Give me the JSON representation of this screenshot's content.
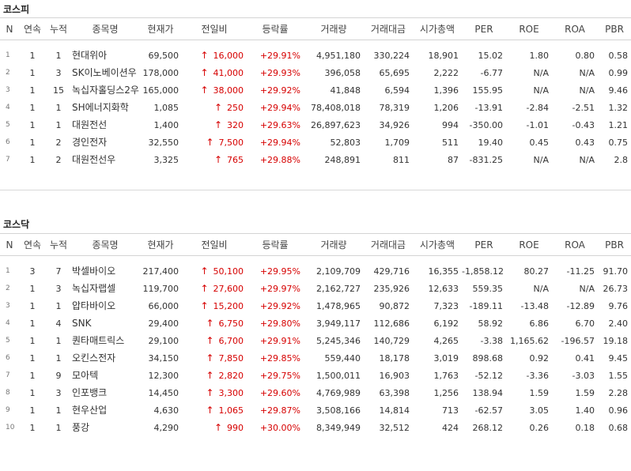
{
  "columns": [
    "N",
    "연속",
    "누적",
    "종목명",
    "현재가",
    "전일비",
    "등락률",
    "거래량",
    "거래대금",
    "시가총액",
    "PER",
    "ROE",
    "ROA",
    "PBR"
  ],
  "kospi": {
    "title": "코스피",
    "rows": [
      {
        "n": "1",
        "streak": "1",
        "total": "1",
        "name": "현대위아",
        "price": "69,500",
        "change": "16,000",
        "rate": "+29.91%",
        "volume": "4,951,180",
        "amount": "330,224",
        "cap": "18,901",
        "per": "15.02",
        "roe": "1.80",
        "roa": "0.80",
        "pbr": "0.58"
      },
      {
        "n": "2",
        "streak": "1",
        "total": "3",
        "name": "SK이노베이션우",
        "price": "178,000",
        "change": "41,000",
        "rate": "+29.93%",
        "volume": "396,058",
        "amount": "65,695",
        "cap": "2,222",
        "per": "-6.77",
        "roe": "N/A",
        "roa": "N/A",
        "pbr": "0.99"
      },
      {
        "n": "3",
        "streak": "1",
        "total": "15",
        "name": "녹십자홀딩스2우",
        "price": "165,000",
        "change": "38,000",
        "rate": "+29.92%",
        "volume": "41,848",
        "amount": "6,594",
        "cap": "1,396",
        "per": "155.95",
        "roe": "N/A",
        "roa": "N/A",
        "pbr": "9.46"
      },
      {
        "n": "4",
        "streak": "1",
        "total": "1",
        "name": "SH에너지화학",
        "price": "1,085",
        "change": "250",
        "rate": "+29.94%",
        "volume": "78,408,018",
        "amount": "78,319",
        "cap": "1,206",
        "per": "-13.91",
        "roe": "-2.84",
        "roa": "-2.51",
        "pbr": "1.32"
      },
      {
        "n": "5",
        "streak": "1",
        "total": "1",
        "name": "대원전선",
        "price": "1,400",
        "change": "320",
        "rate": "+29.63%",
        "volume": "26,897,623",
        "amount": "34,926",
        "cap": "994",
        "per": "-350.00",
        "roe": "-1.01",
        "roa": "-0.43",
        "pbr": "1.21"
      },
      {
        "n": "6",
        "streak": "1",
        "total": "2",
        "name": "경인전자",
        "price": "32,550",
        "change": "7,500",
        "rate": "+29.94%",
        "volume": "52,803",
        "amount": "1,709",
        "cap": "511",
        "per": "19.40",
        "roe": "0.45",
        "roa": "0.43",
        "pbr": "0.75"
      },
      {
        "n": "7",
        "streak": "1",
        "total": "2",
        "name": "대원전선우",
        "price": "3,325",
        "change": "765",
        "rate": "+29.88%",
        "volume": "248,891",
        "amount": "811",
        "cap": "87",
        "per": "-831.25",
        "roe": "N/A",
        "roa": "N/A",
        "pbr": "2.8"
      }
    ]
  },
  "kosdaq": {
    "title": "코스닥",
    "rows": [
      {
        "n": "1",
        "streak": "3",
        "total": "7",
        "name": "박셀바이오",
        "price": "217,400",
        "change": "50,100",
        "rate": "+29.95%",
        "volume": "2,109,709",
        "amount": "429,716",
        "cap": "16,355",
        "per": "-1,858.12",
        "roe": "80.27",
        "roa": "-11.25",
        "pbr": "91.70"
      },
      {
        "n": "2",
        "streak": "1",
        "total": "3",
        "name": "녹십자랩셀",
        "price": "119,700",
        "change": "27,600",
        "rate": "+29.97%",
        "volume": "2,162,727",
        "amount": "235,926",
        "cap": "12,633",
        "per": "559.35",
        "roe": "N/A",
        "roa": "N/A",
        "pbr": "26.73"
      },
      {
        "n": "3",
        "streak": "1",
        "total": "1",
        "name": "압타바이오",
        "price": "66,000",
        "change": "15,200",
        "rate": "+29.92%",
        "volume": "1,478,965",
        "amount": "90,872",
        "cap": "7,323",
        "per": "-189.11",
        "roe": "-13.48",
        "roa": "-12.89",
        "pbr": "9.76"
      },
      {
        "n": "4",
        "streak": "1",
        "total": "4",
        "name": "SNK",
        "price": "29,400",
        "change": "6,750",
        "rate": "+29.80%",
        "volume": "3,949,117",
        "amount": "112,686",
        "cap": "6,192",
        "per": "58.92",
        "roe": "6.86",
        "roa": "6.70",
        "pbr": "2.40"
      },
      {
        "n": "5",
        "streak": "1",
        "total": "1",
        "name": "퀀타매트릭스",
        "price": "29,100",
        "change": "6,700",
        "rate": "+29.91%",
        "volume": "5,245,346",
        "amount": "140,729",
        "cap": "4,265",
        "per": "-3.38",
        "roe": "1,165.62",
        "roa": "-196.57",
        "pbr": "19.18"
      },
      {
        "n": "6",
        "streak": "1",
        "total": "1",
        "name": "오킨스전자",
        "price": "34,150",
        "change": "7,850",
        "rate": "+29.85%",
        "volume": "559,440",
        "amount": "18,178",
        "cap": "3,019",
        "per": "898.68",
        "roe": "0.92",
        "roa": "0.41",
        "pbr": "9.45"
      },
      {
        "n": "7",
        "streak": "1",
        "total": "9",
        "name": "모아텍",
        "price": "12,300",
        "change": "2,820",
        "rate": "+29.75%",
        "volume": "1,500,011",
        "amount": "16,903",
        "cap": "1,763",
        "per": "-52.12",
        "roe": "-3.36",
        "roa": "-3.03",
        "pbr": "1.55"
      },
      {
        "n": "8",
        "streak": "1",
        "total": "3",
        "name": "인포뱅크",
        "price": "14,450",
        "change": "3,300",
        "rate": "+29.60%",
        "volume": "4,769,989",
        "amount": "63,398",
        "cap": "1,256",
        "per": "138.94",
        "roe": "1.59",
        "roa": "1.59",
        "pbr": "2.28"
      },
      {
        "n": "9",
        "streak": "1",
        "total": "1",
        "name": "현우산업",
        "price": "4,630",
        "change": "1,065",
        "rate": "+29.87%",
        "volume": "3,508,166",
        "amount": "14,814",
        "cap": "713",
        "per": "-62.57",
        "roe": "3.05",
        "roa": "1.40",
        "pbr": "0.96"
      },
      {
        "n": "10",
        "streak": "1",
        "total": "1",
        "name": "풍강",
        "price": "4,290",
        "change": "990",
        "rate": "+30.00%",
        "volume": "8,349,949",
        "amount": "32,512",
        "cap": "424",
        "per": "268.12",
        "roe": "0.26",
        "roa": "0.18",
        "pbr": "0.68"
      }
    ]
  },
  "colors": {
    "up": "#d60000",
    "header_border": "#d4d4d4"
  },
  "icons": {
    "change_up": "up-arrow-icon"
  }
}
